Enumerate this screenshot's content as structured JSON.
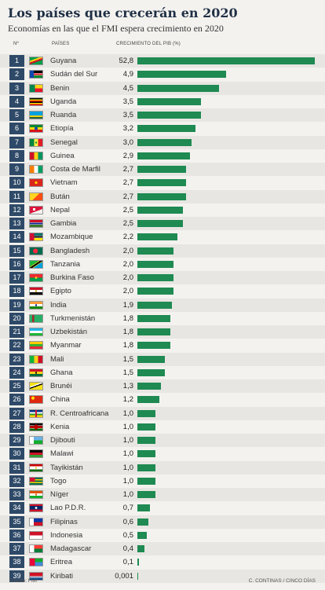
{
  "header": {
    "title": "Los países que crecerán en 2020",
    "subtitle": "Economías en las que el FMI espera crecimiento en 2020",
    "col_num": "Nº",
    "col_country": "PAÍSES",
    "col_growth": "CRECIMIENTO DEL PIB (%)"
  },
  "footer": {
    "source": "Fuente: FMI",
    "credit": "C. CONTINAS / CINCO DÍAS"
  },
  "colors": {
    "bar": "#1f8a52",
    "rank_box": "#2f4a68"
  },
  "chart_data": {
    "type": "bar",
    "orientation": "horizontal",
    "title": "Los países que crecerán en 2020",
    "subtitle": "Economías en las que el FMI espera crecimiento en 2020",
    "xlabel": "CRECIMIENTO DEL PIB (%)",
    "series": [
      {
        "name": "",
        "values": [
          52.8,
          4.9,
          4.5,
          3.5,
          3.5,
          3.2,
          3.0,
          2.9,
          2.7,
          2.7,
          2.7,
          2.5,
          2.5,
          2.2,
          2.0,
          2.0,
          2.0,
          2.0,
          1.9,
          1.8,
          1.8,
          1.8,
          1.5,
          1.5,
          1.3,
          1.2,
          1.0,
          1.0,
          1.0,
          1.0,
          1.0,
          1.0,
          1.0,
          0.7,
          0.6,
          0.5,
          0.4,
          0.1,
          0.001
        ]
      }
    ],
    "rows": [
      {
        "rank": "1",
        "country": "Guyana",
        "label": "52,8",
        "value": 52.8,
        "flag": "guyana-flag"
      },
      {
        "rank": "2",
        "country": "Sudán del Sur",
        "label": "4,9",
        "value": 4.9,
        "flag": "south-sudan-flag"
      },
      {
        "rank": "3",
        "country": "Benin",
        "label": "4,5",
        "value": 4.5,
        "flag": "benin-flag"
      },
      {
        "rank": "4",
        "country": "Uganda",
        "label": "3,5",
        "value": 3.5,
        "flag": "uganda-flag"
      },
      {
        "rank": "5",
        "country": "Ruanda",
        "label": "3,5",
        "value": 3.5,
        "flag": "rwanda-flag"
      },
      {
        "rank": "6",
        "country": "Etiopía",
        "label": "3,2",
        "value": 3.2,
        "flag": "ethiopia-flag"
      },
      {
        "rank": "7",
        "country": "Senegal",
        "label": "3,0",
        "value": 3.0,
        "flag": "senegal-flag"
      },
      {
        "rank": "8",
        "country": "Guinea",
        "label": "2,9",
        "value": 2.9,
        "flag": "guinea-flag"
      },
      {
        "rank": "9",
        "country": "Costa de Marfil",
        "label": "2,7",
        "value": 2.7,
        "flag": "ivory-coast-flag"
      },
      {
        "rank": "10",
        "country": "Vietnam",
        "label": "2,7",
        "value": 2.7,
        "flag": "vietnam-flag"
      },
      {
        "rank": "11",
        "country": "Bután",
        "label": "2,7",
        "value": 2.7,
        "flag": "bhutan-flag"
      },
      {
        "rank": "12",
        "country": "Nepal",
        "label": "2,5",
        "value": 2.5,
        "flag": "nepal-flag"
      },
      {
        "rank": "13",
        "country": "Gambia",
        "label": "2,5",
        "value": 2.5,
        "flag": "gambia-flag"
      },
      {
        "rank": "14",
        "country": "Mozambique",
        "label": "2,2",
        "value": 2.2,
        "flag": "mozambique-flag"
      },
      {
        "rank": "15",
        "country": "Bangladesh",
        "label": "2,0",
        "value": 2.0,
        "flag": "bangladesh-flag"
      },
      {
        "rank": "16",
        "country": "Tanzania",
        "label": "2,0",
        "value": 2.0,
        "flag": "tanzania-flag"
      },
      {
        "rank": "17",
        "country": "Burkina Faso",
        "label": "2,0",
        "value": 2.0,
        "flag": "burkina-faso-flag"
      },
      {
        "rank": "18",
        "country": "Egipto",
        "label": "2,0",
        "value": 2.0,
        "flag": "egypt-flag"
      },
      {
        "rank": "19",
        "country": "India",
        "label": "1,9",
        "value": 1.9,
        "flag": "india-flag"
      },
      {
        "rank": "20",
        "country": "Turkmenistán",
        "label": "1,8",
        "value": 1.8,
        "flag": "turkmenistan-flag"
      },
      {
        "rank": "21",
        "country": "Uzbekistán",
        "label": "1,8",
        "value": 1.8,
        "flag": "uzbekistan-flag"
      },
      {
        "rank": "22",
        "country": "Myanmar",
        "label": "1,8",
        "value": 1.8,
        "flag": "myanmar-flag"
      },
      {
        "rank": "23",
        "country": "Mali",
        "label": "1,5",
        "value": 1.5,
        "flag": "mali-flag"
      },
      {
        "rank": "24",
        "country": "Ghana",
        "label": "1,5",
        "value": 1.5,
        "flag": "ghana-flag"
      },
      {
        "rank": "25",
        "country": "Brunéi",
        "label": "1,3",
        "value": 1.3,
        "flag": "brunei-flag"
      },
      {
        "rank": "26",
        "country": "China",
        "label": "1,2",
        "value": 1.2,
        "flag": "china-flag"
      },
      {
        "rank": "27",
        "country": "R. Centroafricana",
        "label": "1,0",
        "value": 1.0,
        "flag": "central-african-republic-flag"
      },
      {
        "rank": "28",
        "country": "Kenia",
        "label": "1,0",
        "value": 1.0,
        "flag": "kenya-flag"
      },
      {
        "rank": "29",
        "country": "Djibouti",
        "label": "1,0",
        "value": 1.0,
        "flag": "djibouti-flag"
      },
      {
        "rank": "30",
        "country": "Malawi",
        "label": "1,0",
        "value": 1.0,
        "flag": "malawi-flag"
      },
      {
        "rank": "31",
        "country": "Tayikistán",
        "label": "1,0",
        "value": 1.0,
        "flag": "tajikistan-flag"
      },
      {
        "rank": "32",
        "country": "Togo",
        "label": "1,0",
        "value": 1.0,
        "flag": "togo-flag"
      },
      {
        "rank": "33",
        "country": "Níger",
        "label": "1,0",
        "value": 1.0,
        "flag": "niger-flag"
      },
      {
        "rank": "34",
        "country": "Lao P.D.R.",
        "label": "0,7",
        "value": 0.7,
        "flag": "laos-flag"
      },
      {
        "rank": "35",
        "country": "Filipinas",
        "label": "0,6",
        "value": 0.6,
        "flag": "philippines-flag"
      },
      {
        "rank": "36",
        "country": "Indonesia",
        "label": "0,5",
        "value": 0.5,
        "flag": "indonesia-flag"
      },
      {
        "rank": "37",
        "country": "Madagascar",
        "label": "0,4",
        "value": 0.4,
        "flag": "madagascar-flag"
      },
      {
        "rank": "38",
        "country": "Eritrea",
        "label": "0,1",
        "value": 0.1,
        "flag": "eritrea-flag"
      },
      {
        "rank": "39",
        "country": "Kiribati",
        "label": "0,001",
        "value": 0.001,
        "flag": "kiribati-flag"
      }
    ]
  }
}
